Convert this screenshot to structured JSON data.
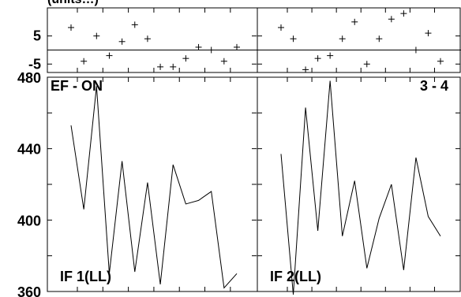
{
  "chart_data": [
    {
      "type": "scatter",
      "panel": "top-left",
      "ylim": [
        -8,
        15
      ],
      "yticks": [
        "5",
        "-5"
      ],
      "reference_line_y": 0,
      "points": [
        {
          "x": 0,
          "y": 8
        },
        {
          "x": 1,
          "y": -4
        },
        {
          "x": 2,
          "y": 5
        },
        {
          "x": 3,
          "y": -2
        },
        {
          "x": 4,
          "y": 3
        },
        {
          "x": 5,
          "y": 9
        },
        {
          "x": 6,
          "y": 4
        },
        {
          "x": 7,
          "y": -6
        },
        {
          "x": 8,
          "y": -6
        },
        {
          "x": 9,
          "y": -3
        },
        {
          "x": 10,
          "y": 1
        },
        {
          "x": 11,
          "y": 0
        },
        {
          "x": 12,
          "y": -4
        },
        {
          "x": 13,
          "y": 1
        }
      ]
    },
    {
      "type": "scatter",
      "panel": "top-right",
      "ylim": [
        -8,
        15
      ],
      "reference_line_y": 0,
      "points": [
        {
          "x": 0,
          "y": 8
        },
        {
          "x": 1,
          "y": 4
        },
        {
          "x": 2,
          "y": -7
        },
        {
          "x": 3,
          "y": -3
        },
        {
          "x": 4,
          "y": -2
        },
        {
          "x": 5,
          "y": 4
        },
        {
          "x": 6,
          "y": 10
        },
        {
          "x": 7,
          "y": -5
        },
        {
          "x": 8,
          "y": 4
        },
        {
          "x": 9,
          "y": 11
        },
        {
          "x": 10,
          "y": 13
        },
        {
          "x": 11,
          "y": 0
        },
        {
          "x": 12,
          "y": 6
        },
        {
          "x": 13,
          "y": -4
        }
      ]
    },
    {
      "type": "line",
      "panel": "bottom-left",
      "label": "IF 1(LL)",
      "corner_label": "EF - ON",
      "ylim": [
        360,
        480
      ],
      "yticks": [
        "480",
        "440",
        "400",
        "360"
      ],
      "x": [
        0,
        1,
        2,
        3,
        4,
        5,
        6,
        7,
        8,
        9,
        10,
        11,
        12,
        13
      ],
      "values": [
        453,
        406,
        475,
        370,
        433,
        371,
        421,
        364,
        431,
        409,
        411,
        416,
        362,
        370
      ]
    },
    {
      "type": "line",
      "panel": "bottom-right",
      "label": "IF 2(LL)",
      "corner_label": "3 - 4",
      "ylim": [
        360,
        480
      ],
      "x": [
        0,
        1,
        2,
        3,
        4,
        5,
        6,
        7,
        8,
        9,
        10,
        11,
        12,
        13
      ],
      "values": [
        437,
        358,
        463,
        394,
        478,
        391,
        422,
        373,
        401,
        420,
        372,
        435,
        402,
        391
      ]
    }
  ],
  "header_fragment": "(units…)"
}
